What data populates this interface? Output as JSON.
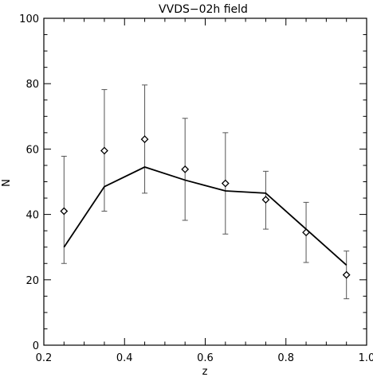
{
  "chart_data": {
    "type": "scatter",
    "title": "VVDS−02h field",
    "xlabel": "z",
    "ylabel": "N",
    "xlim": [
      0.2,
      1.0
    ],
    "ylim": [
      0,
      100
    ],
    "x_ticks": [
      "0.2",
      "0.4",
      "0.6",
      "0.8",
      "1.0"
    ],
    "y_ticks": [
      "0",
      "20",
      "40",
      "60",
      "80",
      "100"
    ],
    "grid": false,
    "legend": "none",
    "series": [
      {
        "kind": "points-with-errorbars",
        "marker": "diamond",
        "x": [
          0.25,
          0.35,
          0.45,
          0.55,
          0.65,
          0.75,
          0.85,
          0.95
        ],
        "y": [
          41,
          59.5,
          63,
          53.8,
          49.5,
          44.5,
          34.5,
          21.5
        ],
        "y_lower": [
          25,
          41,
          46.5,
          38.2,
          34,
          35.5,
          25.3,
          14.2
        ],
        "y_upper": [
          57.8,
          78.2,
          79.6,
          69.4,
          65,
          53.2,
          43.7,
          28.8
        ]
      },
      {
        "kind": "line",
        "x": [
          0.25,
          0.35,
          0.45,
          0.55,
          0.65,
          0.75,
          0.85,
          0.95
        ],
        "y": [
          30,
          48.5,
          54.5,
          50.5,
          47.2,
          46.5,
          35.5,
          24.5
        ]
      }
    ]
  },
  "colors": {
    "axis": "#000000",
    "errorbar": "#555555",
    "line": "#000000",
    "marker": "#000000"
  }
}
